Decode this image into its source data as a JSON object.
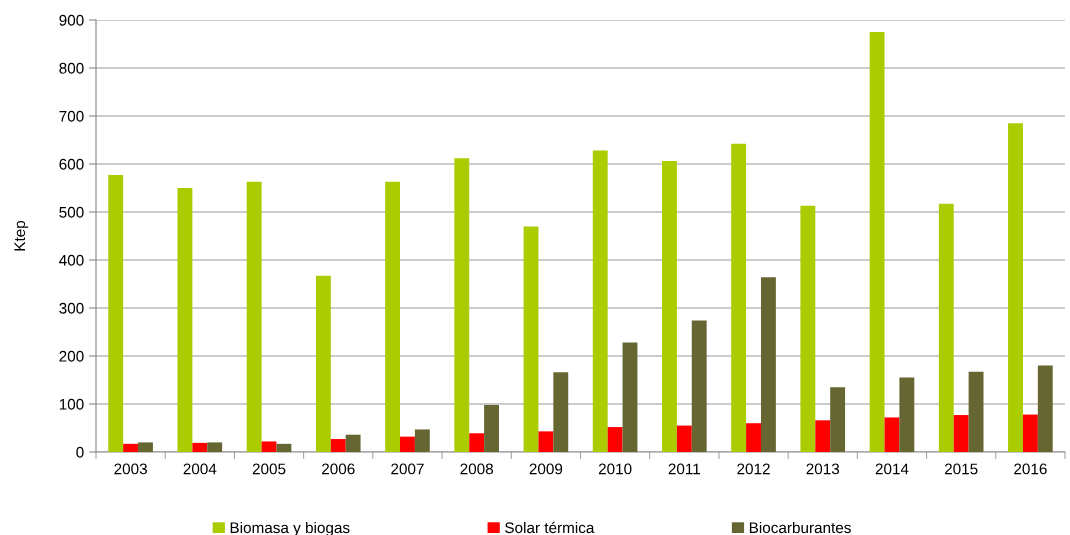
{
  "chart_data": {
    "type": "bar",
    "ylabel": "Ktep",
    "categories": [
      "2003",
      "2004",
      "2005",
      "2006",
      "2007",
      "2008",
      "2009",
      "2010",
      "2011",
      "2012",
      "2013",
      "2014",
      "2015",
      "2016"
    ],
    "series": [
      {
        "name": "Biomasa y biogas",
        "color": "#aacc00",
        "values": [
          577,
          550,
          563,
          367,
          563,
          612,
          470,
          628,
          606,
          642,
          513,
          875,
          517,
          685
        ]
      },
      {
        "name": "Solar térmica",
        "color": "#ff0000",
        "values": [
          17,
          19,
          22,
          27,
          32,
          39,
          43,
          52,
          55,
          60,
          66,
          72,
          77,
          78
        ]
      },
      {
        "name": "Biocarburantes",
        "color": "#666633",
        "values": [
          20,
          20,
          17,
          36,
          47,
          98,
          166,
          228,
          274,
          364,
          135,
          155,
          167,
          180
        ]
      }
    ],
    "ylim": [
      0,
      900
    ],
    "yticks": [
      0,
      100,
      200,
      300,
      400,
      500,
      600,
      700,
      800,
      900
    ],
    "grid": "y",
    "legend": "bottom"
  }
}
